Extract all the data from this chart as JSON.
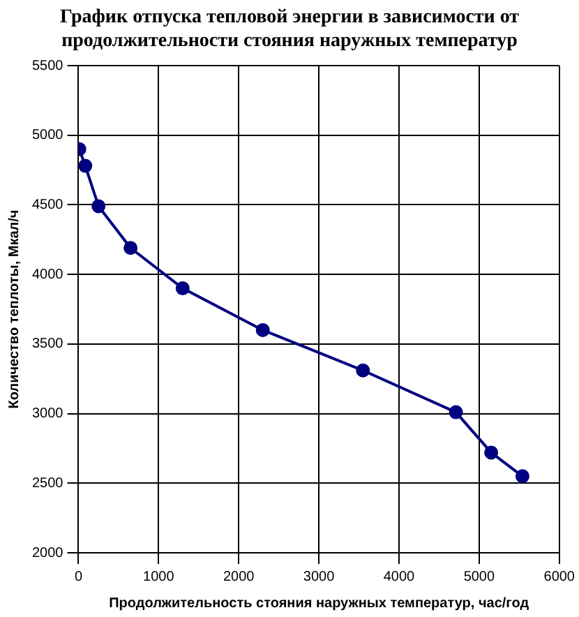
{
  "chart_data": {
    "type": "line",
    "title": "График отпуска тепловой энергии в зависимости от продолжительности стояния наружных температур",
    "xlabel": "Продолжительность стояния наружных температур, час/год",
    "ylabel": "Количество теплоты, Мкал/ч",
    "x": [
      10,
      85,
      250,
      650,
      1300,
      2300,
      3550,
      4710,
      5150,
      5540
    ],
    "series": [
      {
        "color": "#000080",
        "values": [
          4900,
          4780,
          4490,
          4190,
          3900,
          3600,
          3310,
          3010,
          2720,
          2550
        ]
      }
    ],
    "xlim": [
      0,
      6000
    ],
    "xticks": [
      0,
      1000,
      2000,
      3000,
      4000,
      5000,
      6000
    ],
    "ylim": [
      2000,
      5500
    ],
    "yticks": [
      2000,
      2500,
      3000,
      3500,
      4000,
      4500,
      5000,
      5500
    ],
    "grid": true,
    "legend": false,
    "marker": "circle",
    "line_style": "solid"
  }
}
